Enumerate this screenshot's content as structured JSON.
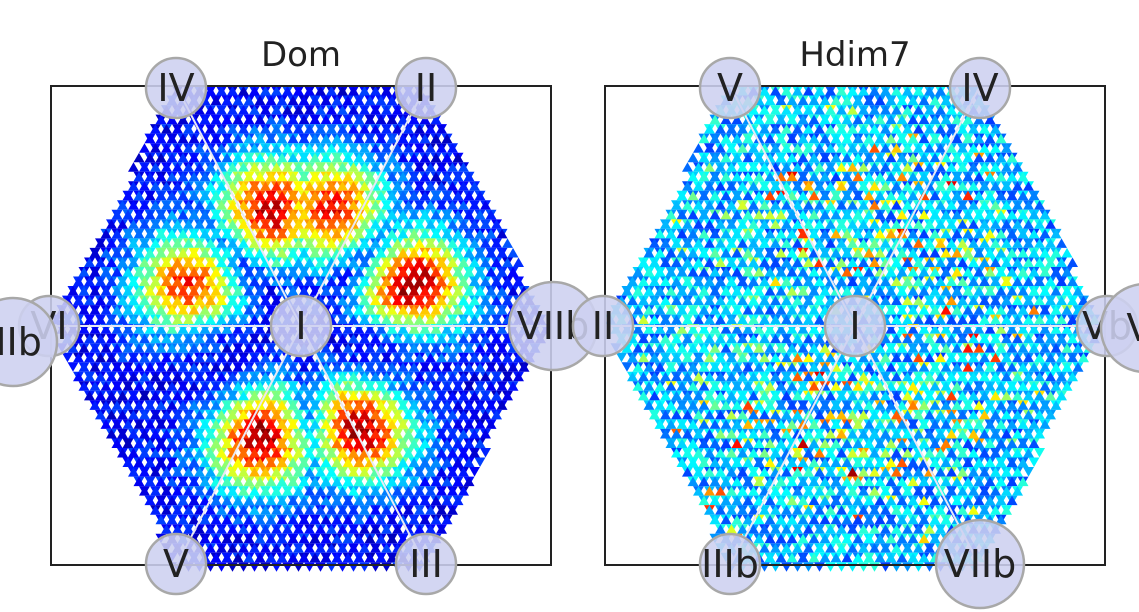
{
  "chart_data": [
    {
      "type": "heatmap",
      "title": "Dom",
      "grid": false,
      "colormap": "jet",
      "nodes": [
        {
          "label": "IV",
          "position": "top-left",
          "size": "small"
        },
        {
          "label": "II",
          "position": "top-right",
          "size": "small"
        },
        {
          "label": "VI",
          "position": "left",
          "size": "small"
        },
        {
          "label": "IIIb",
          "position": "left-outer",
          "size": "large"
        },
        {
          "label": "I",
          "position": "center",
          "size": "small"
        },
        {
          "label": "VIIb",
          "position": "right",
          "size": "large"
        },
        {
          "label": "V",
          "position": "bottom-left",
          "size": "small"
        },
        {
          "label": "III",
          "position": "bottom-right",
          "size": "small"
        }
      ],
      "sectors": [
        {
          "between": [
            "I",
            "IV"
          ],
          "peak_intensity": 0.82
        },
        {
          "between": [
            "I",
            "II"
          ],
          "peak_intensity": 0.78
        },
        {
          "between": [
            "I",
            "VI"
          ],
          "peak_intensity": 0.72
        },
        {
          "between": [
            "I",
            "VIIb"
          ],
          "peak_intensity": 0.86
        },
        {
          "between": [
            "I",
            "V"
          ],
          "peak_intensity": 0.85
        },
        {
          "between": [
            "I",
            "III"
          ],
          "peak_intensity": 0.84
        }
      ]
    },
    {
      "type": "heatmap",
      "title": "Hdim7",
      "grid": false,
      "colormap": "jet",
      "nodes": [
        {
          "label": "V",
          "position": "top-left",
          "size": "small"
        },
        {
          "label": "IV",
          "position": "top-right",
          "size": "small"
        },
        {
          "label": "II",
          "position": "left",
          "size": "small"
        },
        {
          "label": "I",
          "position": "center",
          "size": "small"
        },
        {
          "label": "Vb",
          "position": "right",
          "size": "small"
        },
        {
          "label": "VI",
          "position": "right-outer",
          "size": "large"
        },
        {
          "label": "IIIb",
          "position": "bottom-left",
          "size": "small"
        },
        {
          "label": "VIIb",
          "position": "bottom-right",
          "size": "large"
        }
      ],
      "sectors": [
        {
          "between": [
            "I",
            "V"
          ],
          "peak_intensity": 0.55
        },
        {
          "between": [
            "I",
            "IV"
          ],
          "peak_intensity": 0.5
        },
        {
          "between": [
            "I",
            "II"
          ],
          "peak_intensity": 0.25
        },
        {
          "between": [
            "I",
            "Vb"
          ],
          "peak_intensity": 0.5
        },
        {
          "between": [
            "I",
            "IIIb"
          ],
          "peak_intensity": 0.55
        },
        {
          "between": [
            "I",
            "VIIb"
          ],
          "peak_intensity": 0.45
        }
      ]
    }
  ]
}
